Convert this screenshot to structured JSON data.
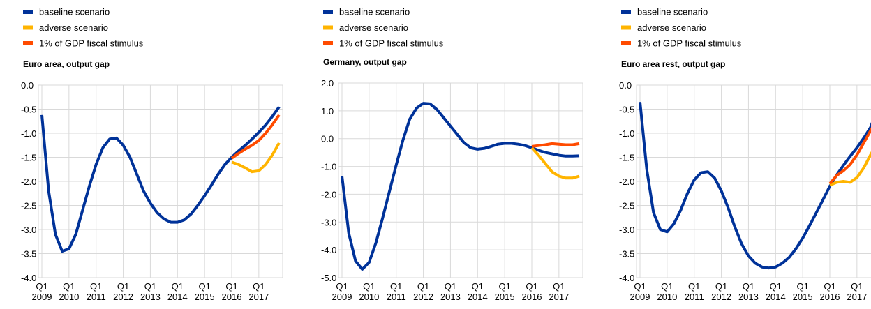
{
  "chart_data": [
    {
      "type": "line",
      "title": "Euro area, output gap",
      "categories": [
        "Q1 2009",
        null,
        null,
        null,
        "Q1 2010",
        null,
        null,
        null,
        "Q1 2011",
        null,
        null,
        null,
        "Q1 2012",
        null,
        null,
        null,
        "Q1 2013",
        null,
        null,
        null,
        "Q1 2014",
        null,
        null,
        null,
        "Q1 2015",
        null,
        null,
        null,
        "Q1 2016",
        null,
        null,
        null,
        "Q1 2017",
        null,
        null,
        null
      ],
      "series": [
        {
          "name": "baseline scenario",
          "color": "#003299",
          "values": [
            -0.62,
            -2.2,
            -3.1,
            -3.45,
            -3.4,
            -3.1,
            -2.6,
            -2.1,
            -1.65,
            -1.3,
            -1.12,
            -1.1,
            -1.25,
            -1.5,
            -1.85,
            -2.2,
            -2.45,
            -2.65,
            -2.78,
            -2.85,
            -2.85,
            -2.8,
            -2.68,
            -2.5,
            -2.3,
            -2.08,
            -1.85,
            -1.65,
            -1.5,
            -1.37,
            -1.25,
            -1.12,
            -0.98,
            -0.83,
            -0.65,
            -0.45
          ]
        },
        {
          "name": "adverse scenario",
          "color": "#ffb400",
          "values": [
            null,
            null,
            null,
            null,
            null,
            null,
            null,
            null,
            null,
            null,
            null,
            null,
            null,
            null,
            null,
            null,
            null,
            null,
            null,
            null,
            null,
            null,
            null,
            null,
            null,
            null,
            null,
            null,
            -1.6,
            -1.65,
            -1.72,
            -1.8,
            -1.78,
            -1.65,
            -1.45,
            -1.2
          ]
        },
        {
          "name": "1% of GDP fiscal stimulus",
          "color": "#ff4b00",
          "values": [
            null,
            null,
            null,
            null,
            null,
            null,
            null,
            null,
            null,
            null,
            null,
            null,
            null,
            null,
            null,
            null,
            null,
            null,
            null,
            null,
            null,
            null,
            null,
            null,
            null,
            null,
            null,
            null,
            -1.52,
            -1.42,
            -1.33,
            -1.25,
            -1.15,
            -1.0,
            -0.82,
            -0.62
          ]
        }
      ],
      "ylim": [
        -4,
        0
      ],
      "yticks": [
        {
          "value": -4,
          "label": "-4.0"
        },
        -3.5,
        {
          "value": -3,
          "label": "-3.0"
        },
        -2.5,
        {
          "value": -2,
          "label": "-2.0"
        },
        -1.5,
        {
          "value": -1,
          "label": "-1.0"
        },
        -0.5,
        {
          "value": 0,
          "label": "0.0"
        }
      ],
      "grid": true
    },
    {
      "type": "line",
      "title": "Germany, output gap",
      "categories": [
        "Q1 2009",
        null,
        null,
        null,
        "Q1 2010",
        null,
        null,
        null,
        "Q1 2011",
        null,
        null,
        null,
        "Q1 2012",
        null,
        null,
        null,
        "Q1 2013",
        null,
        null,
        null,
        "Q1 2014",
        null,
        null,
        null,
        "Q1 2015",
        null,
        null,
        null,
        "Q1 2016",
        null,
        null,
        null,
        "Q1 2017",
        null,
        null,
        null
      ],
      "series": [
        {
          "name": "baseline scenario",
          "color": "#003299",
          "values": [
            -1.35,
            -3.4,
            -4.4,
            -4.7,
            -4.45,
            -3.75,
            -2.85,
            -1.9,
            -0.95,
            -0.05,
            0.7,
            1.1,
            1.27,
            1.25,
            1.05,
            0.75,
            0.45,
            0.15,
            -0.15,
            -0.33,
            -0.38,
            -0.35,
            -0.28,
            -0.2,
            -0.17,
            -0.17,
            -0.2,
            -0.25,
            -0.33,
            -0.42,
            -0.5,
            -0.55,
            -0.6,
            -0.63,
            -0.63,
            -0.62
          ]
        },
        {
          "name": "adverse scenario",
          "color": "#ffb400",
          "values": [
            null,
            null,
            null,
            null,
            null,
            null,
            null,
            null,
            null,
            null,
            null,
            null,
            null,
            null,
            null,
            null,
            null,
            null,
            null,
            null,
            null,
            null,
            null,
            null,
            null,
            null,
            null,
            null,
            -0.33,
            -0.6,
            -0.9,
            -1.2,
            -1.35,
            -1.42,
            -1.42,
            -1.35
          ]
        },
        {
          "name": "1% of GDP fiscal stimulus",
          "color": "#ff4b00",
          "values": [
            null,
            null,
            null,
            null,
            null,
            null,
            null,
            null,
            null,
            null,
            null,
            null,
            null,
            null,
            null,
            null,
            null,
            null,
            null,
            null,
            null,
            null,
            null,
            null,
            null,
            null,
            null,
            null,
            -0.28,
            -0.25,
            -0.22,
            -0.18,
            -0.2,
            -0.22,
            -0.22,
            -0.18
          ]
        }
      ],
      "ylim": [
        -5,
        2
      ],
      "yticks": [
        {
          "value": -5,
          "label": "-5.0"
        },
        {
          "value": -4,
          "label": "-4.0"
        },
        {
          "value": -3,
          "label": "-3.0"
        },
        {
          "value": -2,
          "label": "-2.0"
        },
        {
          "value": -1,
          "label": "-1.0"
        },
        {
          "value": 0,
          "label": "0.0"
        },
        {
          "value": 1,
          "label": "1.0"
        },
        {
          "value": 2,
          "label": "2.0"
        }
      ],
      "grid": true
    },
    {
      "type": "line",
      "title": "Euro area rest, output gap",
      "categories": [
        "Q1 2009",
        null,
        null,
        null,
        "Q1 2010",
        null,
        null,
        null,
        "Q1 2011",
        null,
        null,
        null,
        "Q1 2012",
        null,
        null,
        null,
        "Q1 2013",
        null,
        null,
        null,
        "Q1 2014",
        null,
        null,
        null,
        "Q1 2015",
        null,
        null,
        null,
        "Q1 2016",
        null,
        null,
        null,
        "Q1 2017",
        null,
        null,
        null
      ],
      "series": [
        {
          "name": "baseline scenario",
          "color": "#003299",
          "values": [
            -0.35,
            -1.75,
            -2.65,
            -3.0,
            -3.05,
            -2.88,
            -2.6,
            -2.25,
            -1.97,
            -1.82,
            -1.8,
            -1.93,
            -2.2,
            -2.55,
            -2.95,
            -3.3,
            -3.55,
            -3.7,
            -3.78,
            -3.8,
            -3.78,
            -3.7,
            -3.58,
            -3.4,
            -3.18,
            -2.92,
            -2.65,
            -2.38,
            -2.1,
            -1.87,
            -1.67,
            -1.48,
            -1.3,
            -1.1,
            -0.88,
            -0.5
          ]
        },
        {
          "name": "adverse scenario",
          "color": "#ffb400",
          "values": [
            null,
            null,
            null,
            null,
            null,
            null,
            null,
            null,
            null,
            null,
            null,
            null,
            null,
            null,
            null,
            null,
            null,
            null,
            null,
            null,
            null,
            null,
            null,
            null,
            null,
            null,
            null,
            null,
            -2.08,
            -2.02,
            -2.0,
            -2.02,
            -1.92,
            -1.72,
            -1.45,
            -1.2
          ]
        },
        {
          "name": "1% of GDP fiscal stimulus",
          "color": "#ff4b00",
          "values": [
            null,
            null,
            null,
            null,
            null,
            null,
            null,
            null,
            null,
            null,
            null,
            null,
            null,
            null,
            null,
            null,
            null,
            null,
            null,
            null,
            null,
            null,
            null,
            null,
            null,
            null,
            null,
            null,
            -2.05,
            -1.88,
            -1.78,
            -1.65,
            -1.45,
            -1.2,
            -0.95,
            -0.7
          ]
        }
      ],
      "ylim": [
        -4,
        0
      ],
      "yticks": [
        {
          "value": -4,
          "label": "-4.0"
        },
        -3.5,
        {
          "value": -3,
          "label": "-3.0"
        },
        -2.5,
        {
          "value": -2,
          "label": "-2.0"
        },
        -1.5,
        {
          "value": -1,
          "label": "-1.0"
        },
        -0.5,
        {
          "value": 0,
          "label": "0.0"
        }
      ],
      "grid": true
    }
  ]
}
